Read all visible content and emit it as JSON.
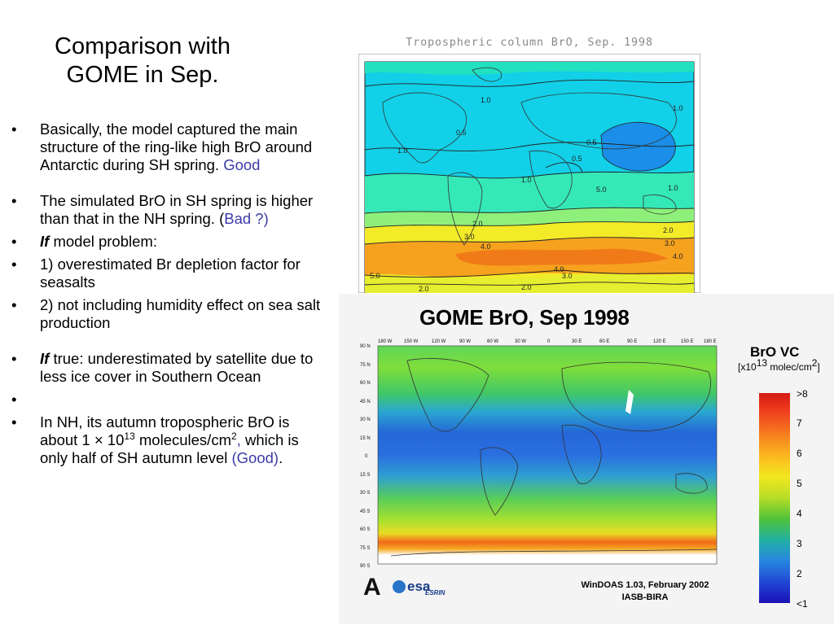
{
  "slide": {
    "title_line1": "Comparison with",
    "title_line2": "GOME in Sep."
  },
  "bullets": {
    "b1_text": "Basically, the model captured the main structure of the ring-like high BrO around Antarctic during SH spring.",
    "b1_good": "Good",
    "b2_text": "The simulated BrO in SH spring is higher than that in the NH spring. (",
    "b2_bad": "Bad ?)",
    "b3_if": "If",
    "b3_text": " model problem:",
    "b4_text": "1) overestimated Br depletion factor for seasalts",
    "b5_text": "2) not including humidity effect on sea salt production",
    "b6_if": "If",
    "b6_text": " true: underestimated by satellite due to less ice cover in Southern Ocean",
    "b8_pre": "In NH, its autumn tropospheric BrO is about 1 × 10",
    "b8_exp": "13",
    "b8_mid": " molecules/cm",
    "b8_exp2": "2",
    "b8_comma": ",",
    "b8_post": " which is only half of SH autumn level ",
    "b8_good": "(Good)",
    "b8_end": "."
  },
  "top_map": {
    "title": "Tropospheric column BrO, Sep. 1998",
    "contour_labels": [
      "1.0",
      "0.5",
      "1.0",
      "0.5",
      "1.0",
      "1.0",
      "2.0",
      "2.0",
      "3.0",
      "4.0",
      "3.0",
      "4.0",
      "5.0",
      "4.0",
      "3.0",
      "2.0",
      "2.0",
      "5.0",
      "1.0",
      "0.5"
    ]
  },
  "gome": {
    "title": "GOME BrO, Sep 1998",
    "lon_labels": [
      "180 W",
      "150 W",
      "120 W",
      "90 W",
      "60 W",
      "30 W",
      "0",
      "30 E",
      "60 E",
      "90 E",
      "120 E",
      "150 E",
      "180 E"
    ],
    "lat_labels": [
      "90 N",
      "75 N",
      "60 N",
      "45 N",
      "30 N",
      "15 N",
      "0",
      "15 S",
      "30 S",
      "45 S",
      "60 S",
      "75 S",
      "90 S"
    ],
    "colorbar_title": "BrO VC",
    "colorbar_units": "[x10",
    "colorbar_units_exp": "13",
    "colorbar_units_rest": " molec/cm",
    "colorbar_units_exp2": "2",
    "colorbar_units_end": "]",
    "colorbar_ticks": [
      ">8",
      "7",
      "6",
      "5",
      "4",
      "3",
      "2",
      "<1"
    ],
    "footer_line1": "WinDOAS 1.03, February 2002",
    "footer_line2": "IASB-BIRA",
    "logo_esa": "esa",
    "logo_esrin": "ESRIN",
    "logo_a": "A"
  }
}
